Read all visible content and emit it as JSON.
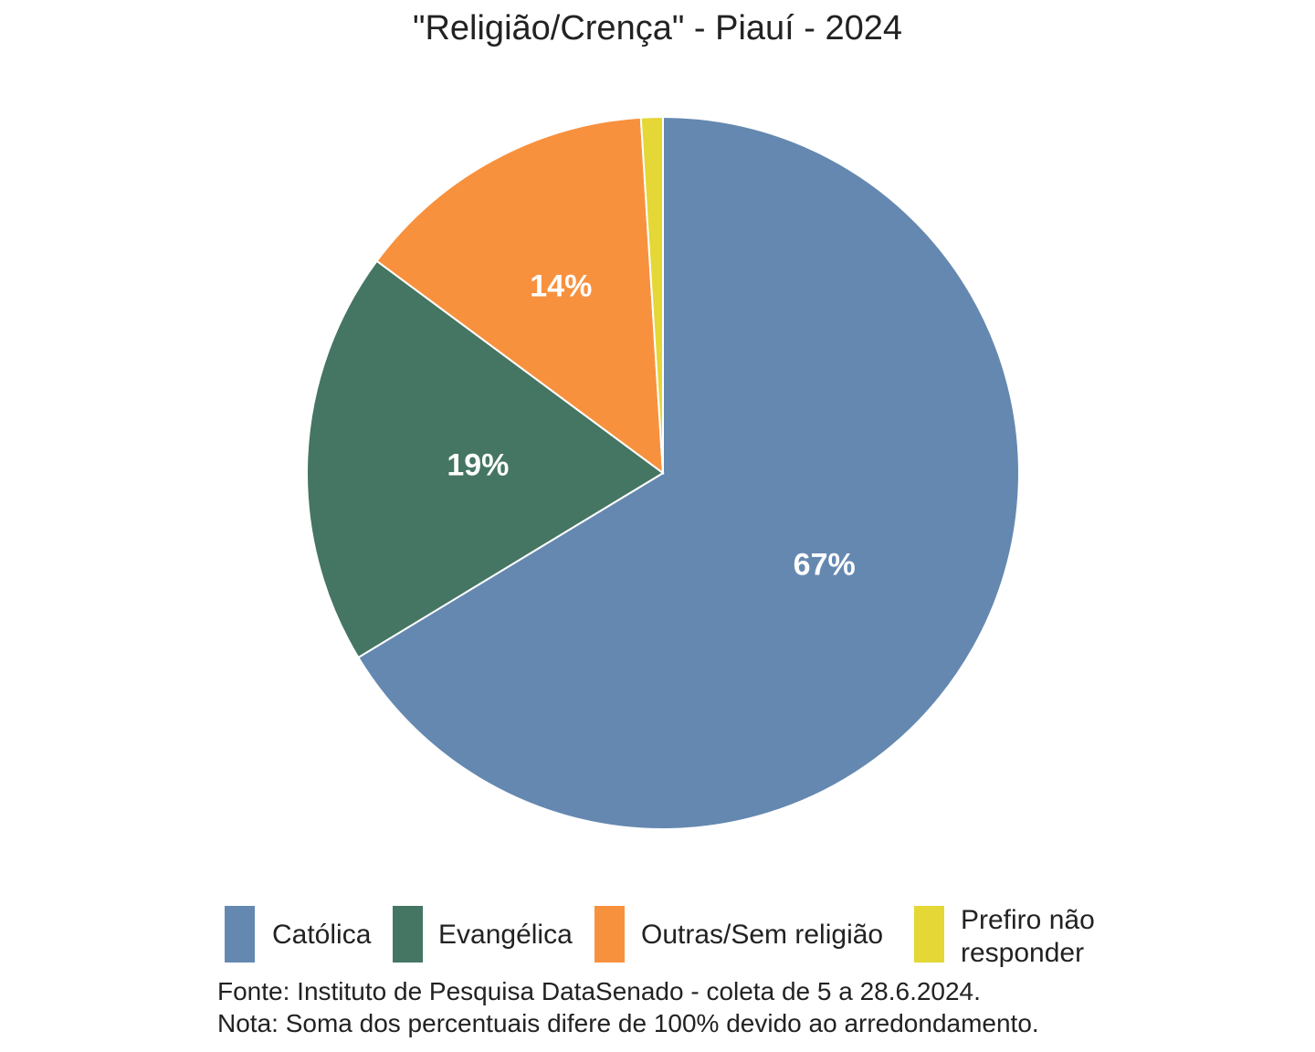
{
  "title": "\"Religião/Crença\" - Piauí - 2024",
  "chart_data": {
    "type": "pie",
    "title": "\"Religião/Crença\" - Piauí - 2024",
    "slices": [
      {
        "name": "Católica",
        "value": 67,
        "label": "67%",
        "color": "#6588b0"
      },
      {
        "name": "Evangélica",
        "value": 19,
        "label": "19%",
        "color": "#457563"
      },
      {
        "name": "Outras/Sem religião",
        "value": 14,
        "label": "14%",
        "color": "#f8913e"
      },
      {
        "name": "Prefiro não responder",
        "value": 1,
        "label": "",
        "color": "#e4d736"
      }
    ],
    "legend_position": "bottom"
  },
  "legend": [
    {
      "label": "Católica"
    },
    {
      "label": "Evangélica"
    },
    {
      "label": "Outras/Sem religião"
    },
    {
      "label_line1": "Prefiro não",
      "label_line2": "responder"
    }
  ],
  "notes": {
    "source": "Fonte: Instituto de Pesquisa DataSenado - coleta de 5 a 28.6.2024.",
    "note": "Nota: Soma dos percentuais difere de 100% devido ao arredondamento."
  }
}
